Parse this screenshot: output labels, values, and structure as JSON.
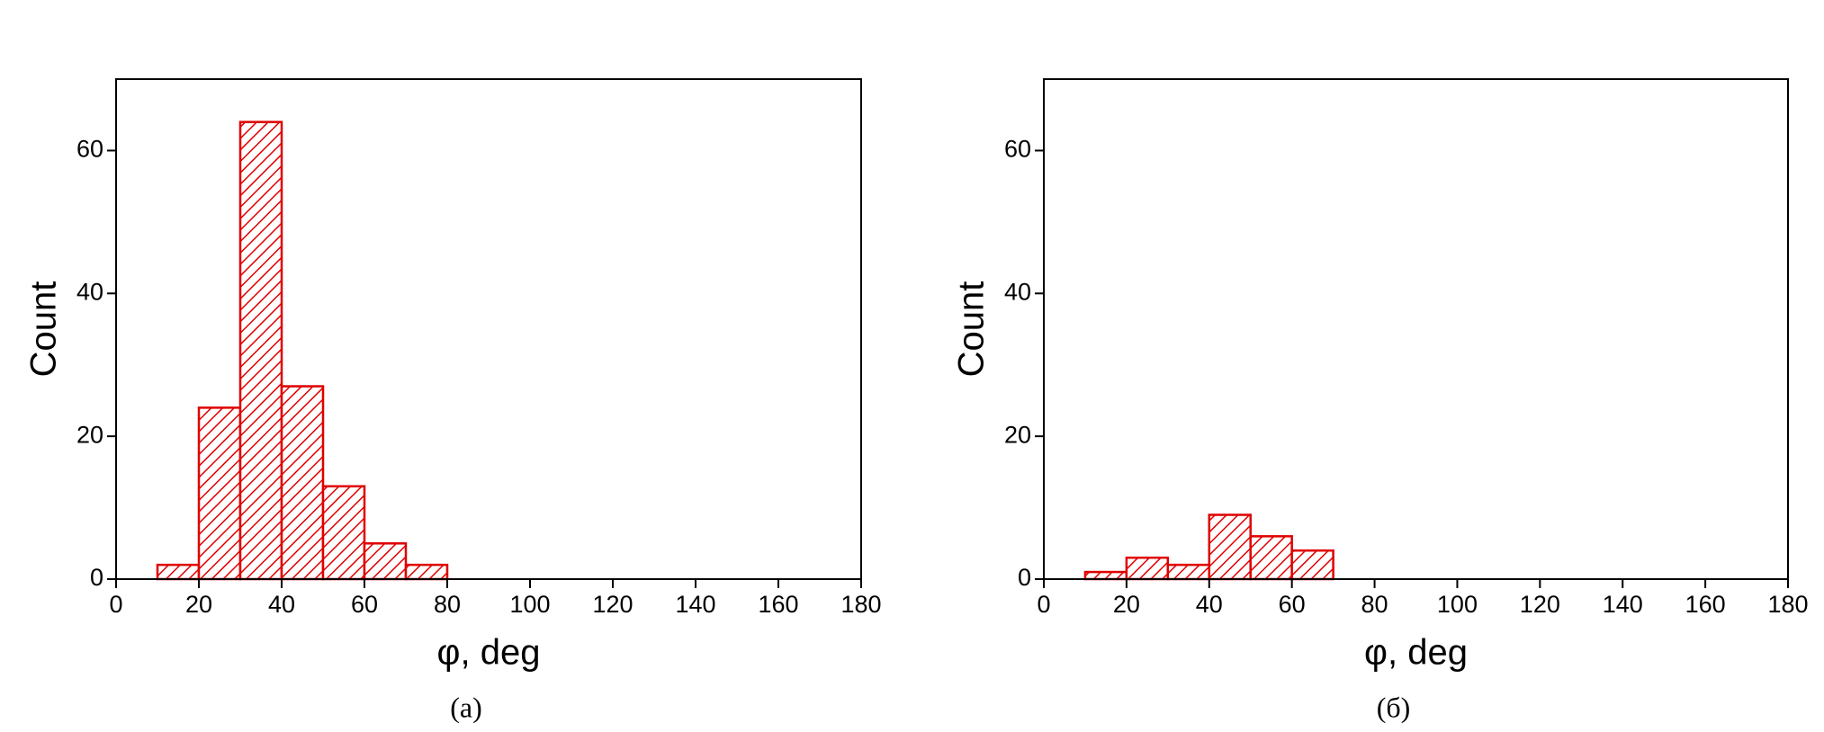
{
  "chart_data": [
    {
      "type": "histogram",
      "bins": [
        10,
        20,
        30,
        40,
        50,
        60,
        70,
        80
      ],
      "values": [
        2,
        24,
        64,
        27,
        13,
        5,
        2
      ],
      "color": "#e00000",
      "xlim": [
        0,
        180
      ],
      "xticks": [
        0,
        20,
        40,
        60,
        80,
        100,
        120,
        140,
        160,
        180
      ],
      "ylim": [
        0,
        70
      ],
      "yticks": [
        0,
        20,
        40,
        60
      ],
      "xlabel": "φ, deg",
      "ylabel": "Count",
      "caption": "(a)"
    },
    {
      "type": "histogram",
      "bins": [
        10,
        20,
        30,
        40,
        50,
        60,
        70
      ],
      "values": [
        1,
        3,
        2,
        9,
        6,
        4
      ],
      "color": "#e00000",
      "xlim": [
        0,
        180
      ],
      "xticks": [
        0,
        20,
        40,
        60,
        80,
        100,
        120,
        140,
        160,
        180
      ],
      "ylim": [
        0,
        70
      ],
      "yticks": [
        0,
        20,
        40,
        60
      ],
      "xlabel": "φ, deg",
      "ylabel": "Count",
      "caption": "(б)"
    }
  ]
}
